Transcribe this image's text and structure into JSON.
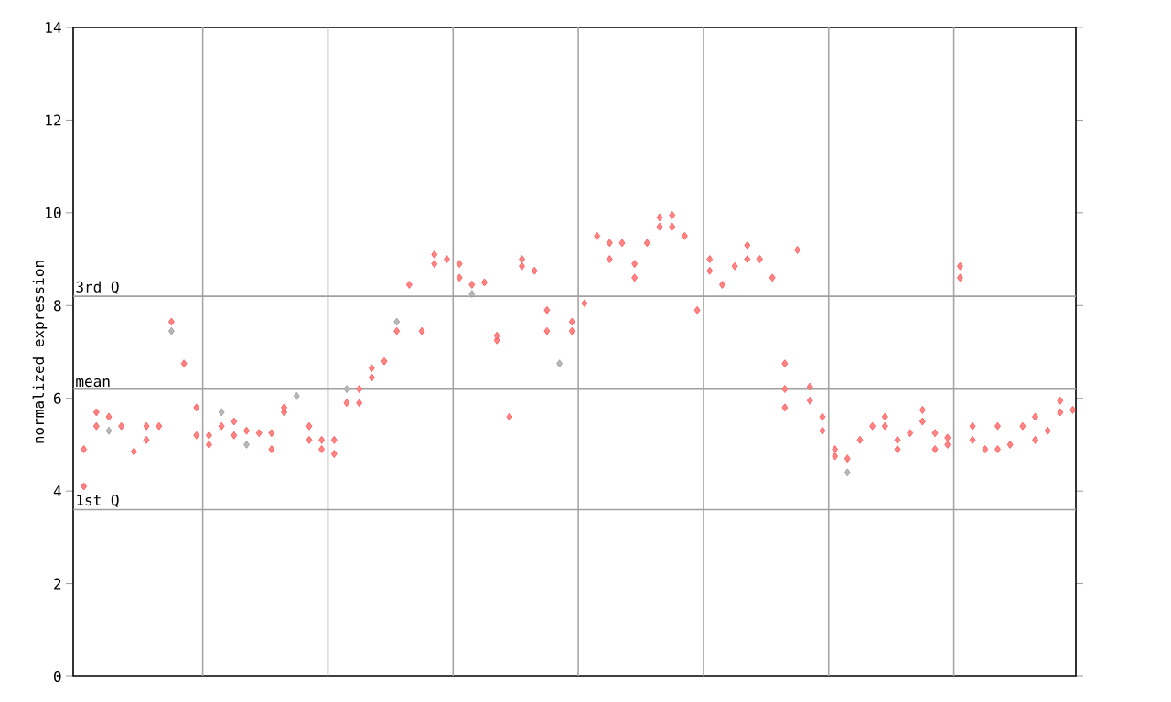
{
  "chart_data": {
    "type": "scatter",
    "ylabel": "normalized expression",
    "ylim": [
      0,
      14
    ],
    "yticks": [
      0,
      2,
      4,
      6,
      8,
      10,
      12,
      14
    ],
    "categories": [
      null,
      null,
      null,
      null,
      null,
      null,
      null,
      null,
      null,
      null,
      null,
      null,
      null,
      null,
      null,
      null,
      null,
      null,
      null,
      null,
      null,
      null,
      null,
      null,
      null,
      null,
      null,
      null,
      null,
      null,
      null,
      null,
      null,
      null,
      null,
      null,
      null,
      null,
      null,
      null,
      null,
      null,
      null,
      null,
      null,
      null,
      null,
      null,
      null,
      null,
      null,
      null,
      null,
      null,
      null,
      null,
      null,
      null,
      null,
      null,
      null,
      null,
      null,
      null,
      null,
      null,
      null,
      null,
      null,
      null,
      null,
      null,
      null,
      null,
      null,
      null,
      null,
      null,
      null,
      null
    ],
    "grid": "x",
    "marker": "diamond",
    "ref_lines": [
      {
        "axis": "y",
        "value": 8.2,
        "label": "3rd Q",
        "color": "#a0a0a0"
      },
      {
        "axis": "y",
        "value": 6.2,
        "label": "mean",
        "color": "#a0a0a0"
      },
      {
        "axis": "y",
        "value": 3.6,
        "label": "1st Q",
        "color": "#a0a0a0"
      }
    ],
    "series": [
      {
        "color": "#ff5050",
        "values": [
          4.9,
          5.7,
          5.6,
          5.4,
          4.85,
          5.4,
          5.4,
          7.65,
          6.75,
          5.8,
          5.2,
          5.4,
          5.5,
          5.3,
          5.25,
          5.25,
          5.7,
          null,
          5.4,
          5.1,
          5.1,
          5.9,
          6.2,
          6.65,
          6.8,
          7.45,
          8.45,
          7.45,
          9.1,
          9.0,
          8.9,
          8.45,
          8.5,
          7.25,
          5.6,
          9.0,
          8.75,
          7.9,
          null,
          7.65,
          8.05,
          9.5,
          9.0,
          9.35,
          8.9,
          9.35,
          9.9,
          9.95,
          9.5,
          7.9,
          9.0,
          8.45,
          8.85,
          9.3,
          9.0,
          8.6,
          6.75,
          9.2,
          6.25,
          5.6,
          4.9,
          4.7,
          5.1,
          5.4,
          5.6,
          4.9,
          5.25,
          5.75,
          5.25,
          5.0,
          8.85,
          5.4,
          4.9,
          5.4,
          5.0,
          5.4,
          5.6,
          5.3,
          5.95,
          5.75
        ]
      },
      {
        "color": "#ff5050",
        "values": [
          4.1,
          5.4,
          null,
          null,
          null,
          5.1,
          null,
          null,
          null,
          5.2,
          5.0,
          null,
          5.2,
          null,
          null,
          4.9,
          5.8,
          null,
          5.1,
          4.9,
          4.8,
          null,
          5.9,
          6.45,
          null,
          null,
          null,
          null,
          8.9,
          null,
          8.6,
          null,
          null,
          7.35,
          null,
          8.85,
          null,
          7.45,
          null,
          7.45,
          null,
          null,
          9.35,
          null,
          8.6,
          null,
          9.7,
          9.7,
          null,
          null,
          8.75,
          null,
          null,
          9.0,
          null,
          null,
          6.2,
          null,
          5.95,
          5.3,
          4.75,
          null,
          null,
          null,
          5.4,
          5.1,
          null,
          5.5,
          4.9,
          5.15,
          8.6,
          5.1,
          null,
          4.9,
          null,
          null,
          5.1,
          null,
          5.7,
          null
        ]
      },
      {
        "color": "#ff5050",
        "values": [
          null,
          null,
          null,
          null,
          null,
          null,
          null,
          null,
          null,
          null,
          null,
          null,
          null,
          null,
          null,
          null,
          null,
          null,
          null,
          null,
          null,
          null,
          null,
          null,
          null,
          null,
          null,
          null,
          null,
          null,
          null,
          null,
          null,
          null,
          null,
          null,
          null,
          null,
          null,
          null,
          null,
          null,
          null,
          null,
          null,
          null,
          null,
          null,
          null,
          null,
          null,
          null,
          null,
          null,
          null,
          null,
          5.8,
          null,
          null,
          null,
          null,
          null,
          null,
          null,
          null,
          null,
          null,
          null,
          null,
          null,
          null,
          null,
          null,
          null,
          null,
          null,
          null,
          null,
          null,
          null
        ]
      },
      {
        "color": "#999999",
        "values": [
          null,
          null,
          5.3,
          null,
          null,
          null,
          null,
          7.45,
          null,
          null,
          null,
          5.7,
          null,
          5.0,
          null,
          null,
          null,
          6.05,
          null,
          null,
          null,
          6.2,
          null,
          null,
          null,
          7.65,
          null,
          null,
          null,
          null,
          null,
          8.25,
          null,
          null,
          null,
          null,
          null,
          null,
          6.75,
          null,
          null,
          null,
          null,
          null,
          null,
          null,
          null,
          null,
          null,
          null,
          null,
          null,
          null,
          null,
          null,
          null,
          null,
          null,
          null,
          null,
          null,
          4.4,
          null,
          null,
          null,
          null,
          null,
          null,
          null,
          null,
          null,
          null,
          null,
          null,
          null,
          null,
          null,
          null,
          null,
          null
        ]
      }
    ]
  }
}
